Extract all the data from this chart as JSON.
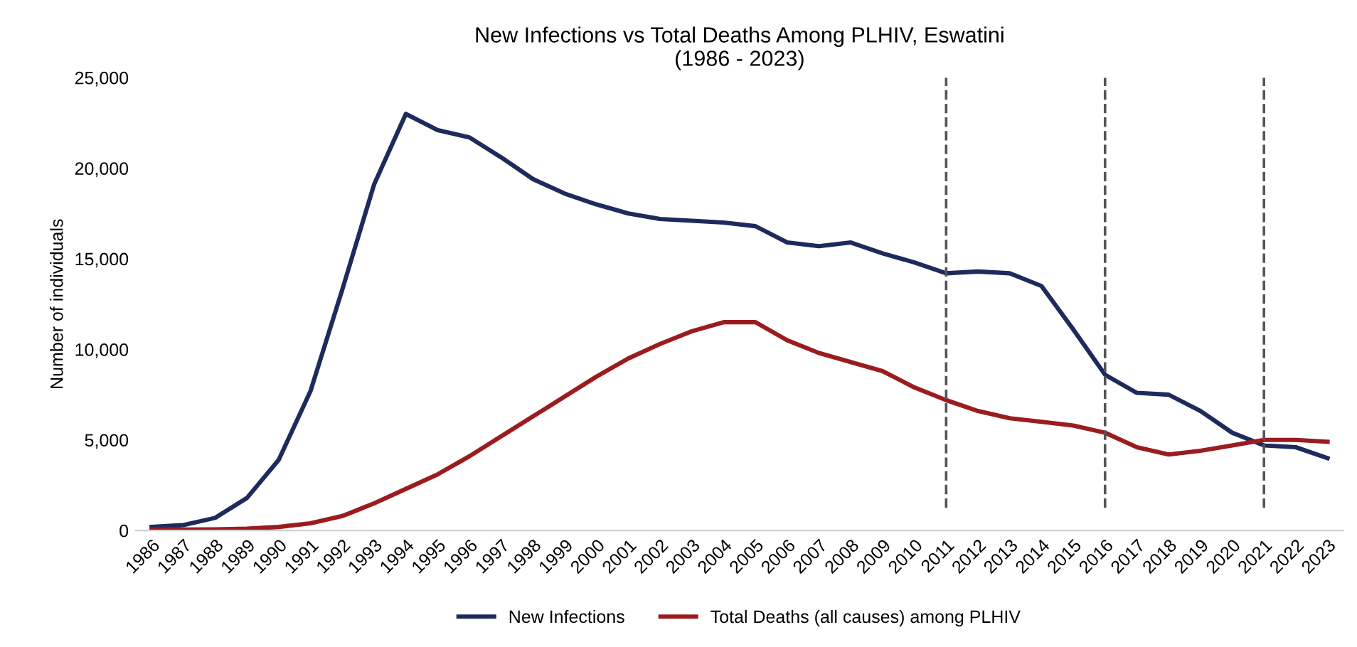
{
  "chart_data": {
    "type": "line",
    "title": "New Infections vs Total Deaths Among PLHIV, Eswatini\n(1986 - 2023)",
    "ylabel": "Number of individuals",
    "categories": [
      "1986",
      "1987",
      "1988",
      "1989",
      "1990",
      "1991",
      "1992",
      "1993",
      "1994",
      "1995",
      "1996",
      "1997",
      "1998",
      "1999",
      "2000",
      "2001",
      "2002",
      "2003",
      "2004",
      "2005",
      "2006",
      "2007",
      "2008",
      "2009",
      "2010",
      "2011",
      "2012",
      "2013",
      "2014",
      "2015",
      "2016",
      "2017",
      "2018",
      "2019",
      "2020",
      "2021",
      "2022",
      "2023"
    ],
    "series": [
      {
        "name": "New Infections",
        "color": "#1f2a5c",
        "values": [
          200,
          300,
          700,
          1800,
          3900,
          7700,
          13300,
          19100,
          23000,
          22100,
          21700,
          20600,
          19400,
          18600,
          18000,
          17500,
          17200,
          17100,
          17000,
          16800,
          15900,
          15700,
          15900,
          15300,
          14800,
          14200,
          14300,
          14200,
          13500,
          11100,
          8600,
          7600,
          7500,
          6600,
          5400,
          4700,
          4600,
          4000
        ]
      },
      {
        "name": "Total Deaths (all causes) among PLHIV",
        "color": "#9b1c1f",
        "values": [
          50,
          50,
          60,
          100,
          200,
          400,
          800,
          1500,
          2300,
          3100,
          4100,
          5200,
          6300,
          7400,
          8500,
          9500,
          10300,
          11000,
          11500,
          11500,
          10500,
          9800,
          9300,
          8800,
          7900,
          7200,
          6600,
          6200,
          6000,
          5800,
          5400,
          4600,
          4200,
          4400,
          4700,
          5000,
          5000,
          4900
        ]
      }
    ],
    "ylim": [
      0,
      25000
    ],
    "yticks": [
      {
        "value": 0,
        "label": "0"
      },
      {
        "value": 5000,
        "label": "5,000"
      },
      {
        "value": 10000,
        "label": "10,000"
      },
      {
        "value": 15000,
        "label": "15,000"
      },
      {
        "value": 20000,
        "label": "20,000"
      },
      {
        "value": 25000,
        "label": "25,000"
      }
    ],
    "ref_lines": [
      {
        "axis": "x",
        "value": "2011",
        "color": "#555555",
        "line_style": "dashed"
      },
      {
        "axis": "x",
        "value": "2016",
        "color": "#555555",
        "line_style": "dashed"
      },
      {
        "axis": "x",
        "value": "2021",
        "color": "#555555",
        "line_style": "dashed"
      }
    ],
    "grid": false,
    "legend": "bottom",
    "line_style": "solid",
    "marker": "none"
  }
}
